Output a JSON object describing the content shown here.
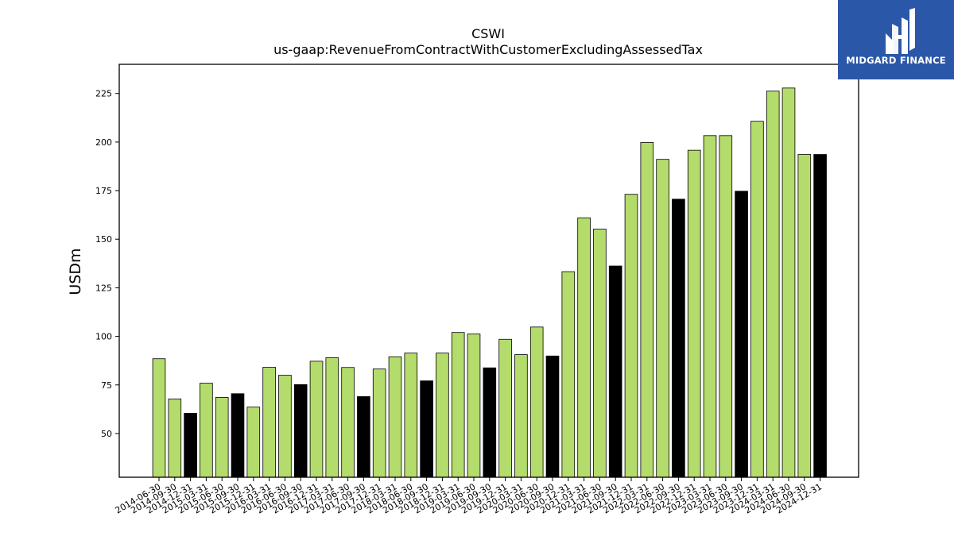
{
  "logo": {
    "text": "MIDGARD FINANCE",
    "background": "#2b57a8",
    "mark": "MF monogram"
  },
  "chart_data": {
    "type": "bar",
    "title": "CSWI",
    "subtitle": "us-gaap:RevenueFromContractWithCustomerExcludingAssessedTax",
    "xlabel": "",
    "ylabel": "USDm",
    "ylim": [
      27.5,
      240
    ],
    "yticks": [
      50,
      75,
      100,
      125,
      150,
      175,
      200,
      225
    ],
    "grid": false,
    "colors": {
      "quarter": "#b3dc6c",
      "year_end": "#000000",
      "edge": "#000000"
    },
    "categories": [
      "2014-06-30",
      "2014-09-30",
      "2014-12-31",
      "2015-03-31",
      "2015-06-30",
      "2015-09-30",
      "2015-12-31",
      "2016-03-31",
      "2016-06-30",
      "2016-09-30",
      "2016-12-31",
      "2017-03-31",
      "2017-06-30",
      "2017-09-30",
      "2017-12-31",
      "2018-03-31",
      "2018-06-30",
      "2018-09-30",
      "2018-12-31",
      "2019-03-31",
      "2019-06-30",
      "2019-09-30",
      "2019-12-31",
      "2020-03-31",
      "2020-06-30",
      "2020-09-30",
      "2020-12-31",
      "2021-03-31",
      "2021-06-30",
      "2021-09-30",
      "2021-12-31",
      "2022-03-31",
      "2022-06-30",
      "2022-09-30",
      "2022-12-31",
      "2023-03-31",
      "2023-06-30",
      "2023-09-30",
      "2023-12-31",
      "2024-03-31",
      "2024-06-30",
      "2024-09-30",
      "2024-12-31"
    ],
    "values": [
      88.5,
      67.8,
      60.4,
      75.9,
      68.6,
      70.5,
      63.6,
      84.1,
      80.0,
      75.2,
      87.2,
      89.0,
      84.0,
      69.0,
      83.2,
      89.5,
      91.4,
      77.1,
      91.4,
      102.0,
      101.2,
      83.8,
      98.5,
      90.6,
      104.8,
      89.9,
      133.3,
      161.0,
      155.2,
      136.2,
      173.1,
      199.8,
      191.1,
      170.6,
      195.8,
      203.3,
      203.3,
      174.7,
      210.7,
      226.2,
      227.8,
      193.6,
      193.6
    ],
    "year_end": [
      false,
      false,
      true,
      false,
      false,
      true,
      false,
      false,
      false,
      true,
      false,
      false,
      false,
      true,
      false,
      false,
      false,
      true,
      false,
      false,
      false,
      true,
      false,
      false,
      false,
      true,
      false,
      false,
      false,
      true,
      false,
      false,
      false,
      true,
      false,
      false,
      false,
      true,
      false,
      false,
      false,
      false,
      true
    ]
  }
}
